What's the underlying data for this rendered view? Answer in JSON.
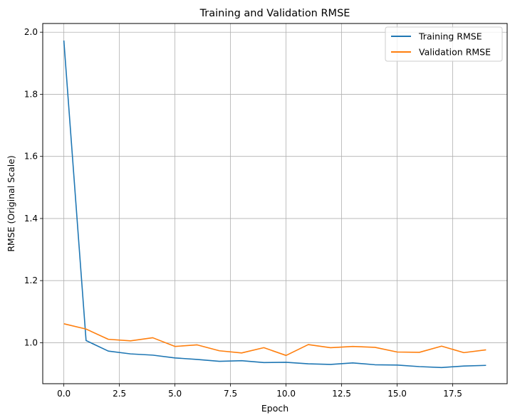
{
  "chart_data": {
    "type": "line",
    "title": "Training and Validation RMSE",
    "xlabel": "Epoch",
    "ylabel": "RMSE (Original Scale)",
    "xlim": [
      -0.95,
      19.95
    ],
    "ylim": [
      0.868,
      2.028
    ],
    "xticks": [
      0.0,
      2.5,
      5.0,
      7.5,
      10.0,
      12.5,
      15.0,
      17.5
    ],
    "xtick_labels": [
      "0.0",
      "2.5",
      "5.0",
      "7.5",
      "10.0",
      "12.5",
      "15.0",
      "17.5"
    ],
    "yticks": [
      1.0,
      1.2,
      1.4,
      1.6,
      1.8,
      2.0
    ],
    "ytick_labels": [
      "1.0",
      "1.2",
      "1.4",
      "1.6",
      "1.8",
      "2.0"
    ],
    "grid": true,
    "legend_position": "top-right",
    "x": [
      0,
      1,
      2,
      3,
      4,
      5,
      6,
      7,
      8,
      9,
      10,
      11,
      12,
      13,
      14,
      15,
      16,
      17,
      18,
      19
    ],
    "series": [
      {
        "name": "Training RMSE",
        "color": "#1f77b4",
        "values": [
          1.973,
          1.007,
          0.973,
          0.964,
          0.96,
          0.951,
          0.946,
          0.94,
          0.942,
          0.936,
          0.937,
          0.932,
          0.93,
          0.935,
          0.929,
          0.928,
          0.923,
          0.92,
          0.925,
          0.927
        ]
      },
      {
        "name": "Validation RMSE",
        "color": "#ff7f0e",
        "values": [
          1.061,
          1.044,
          1.011,
          1.006,
          1.016,
          0.988,
          0.993,
          0.974,
          0.967,
          0.984,
          0.959,
          0.994,
          0.984,
          0.988,
          0.985,
          0.97,
          0.969,
          0.989,
          0.968,
          0.977
        ]
      }
    ]
  }
}
